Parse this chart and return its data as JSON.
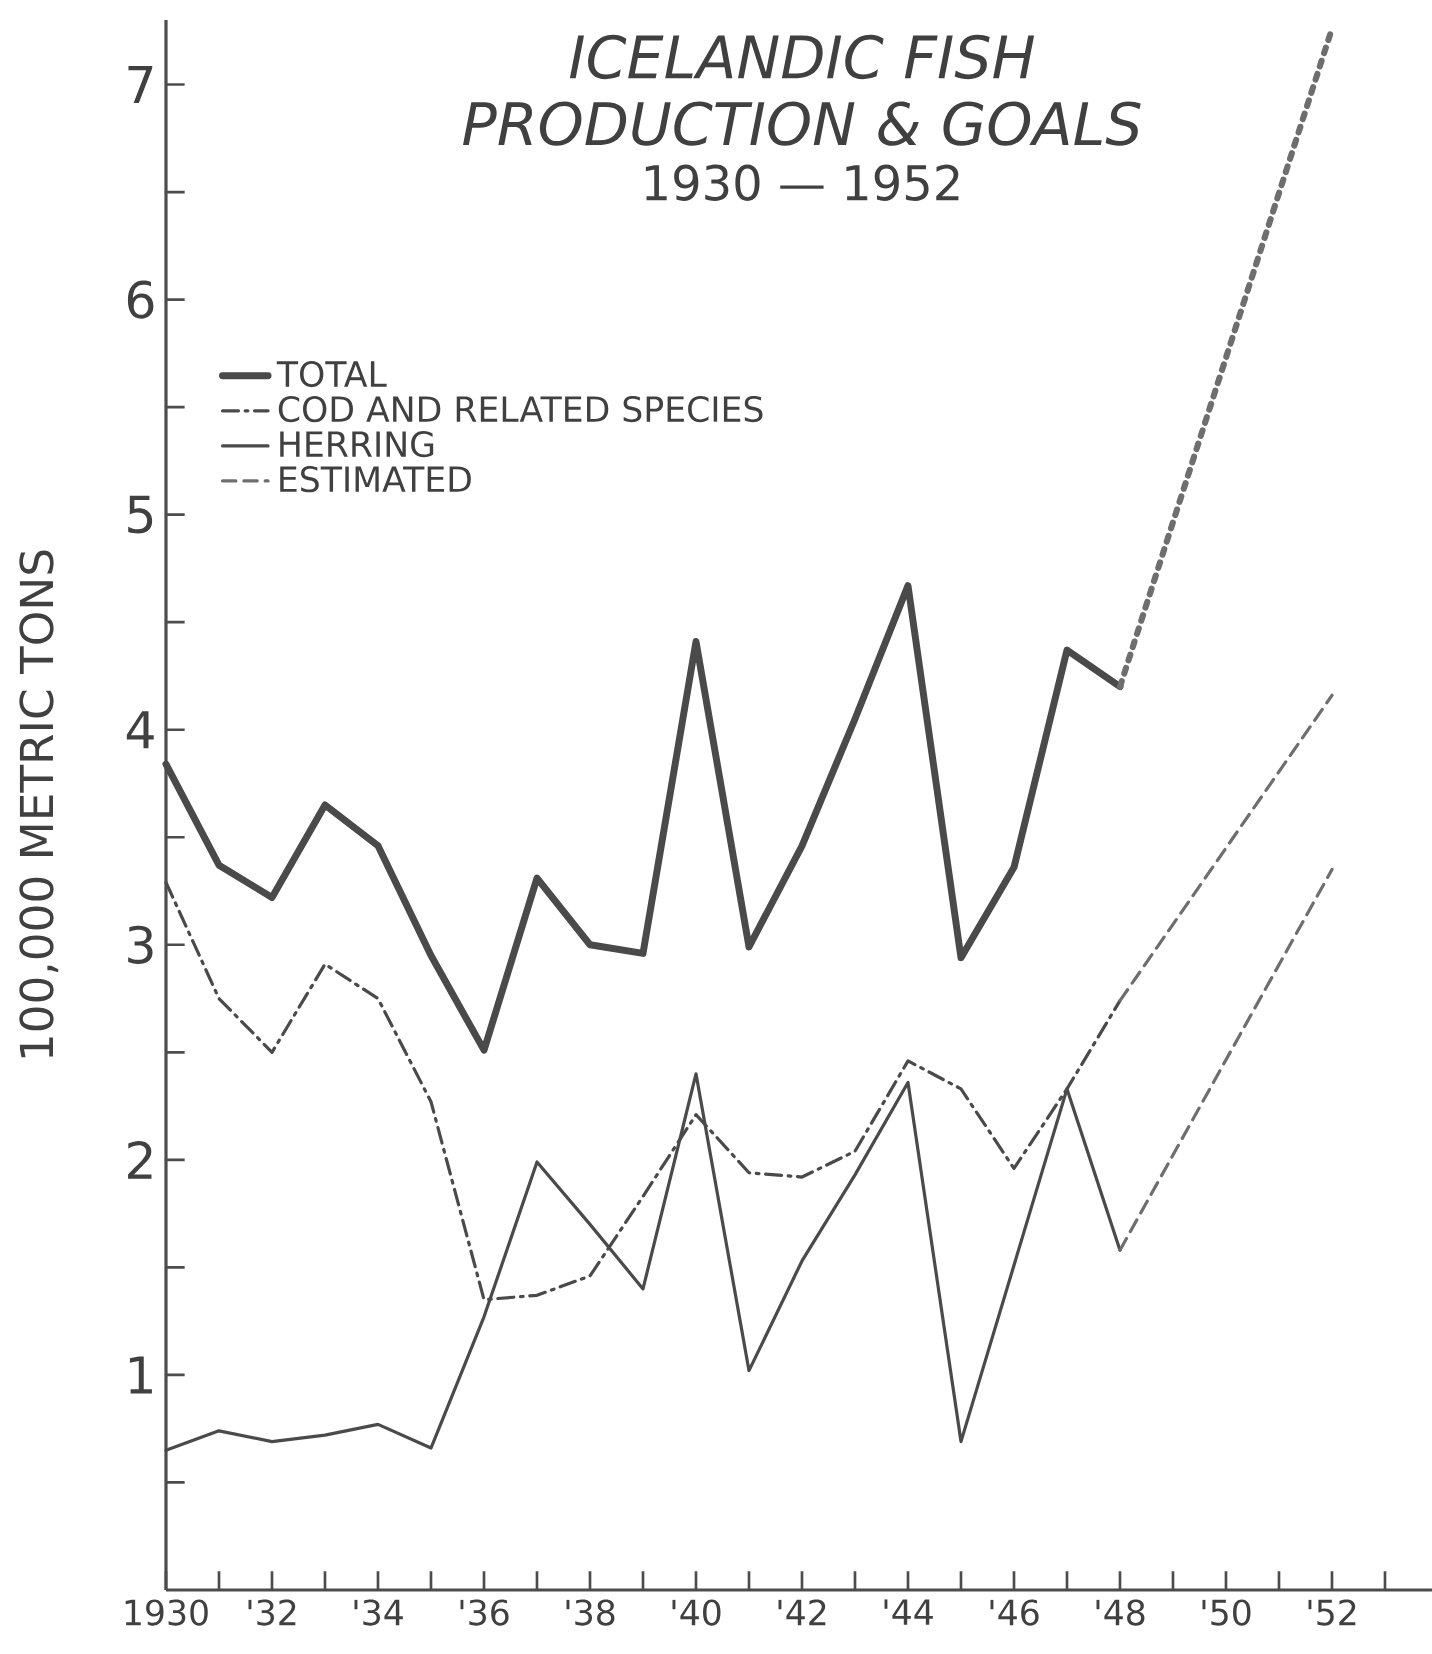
{
  "chart_data": {
    "type": "line",
    "title": "ICELANDIC FISH PRODUCTION & GOALS",
    "subtitle": "1930 — 1952",
    "ylabel": "100,000 METRIC TONS",
    "x": [
      1930,
      1931,
      1932,
      1933,
      1934,
      1935,
      1936,
      1937,
      1938,
      1939,
      1940,
      1941,
      1942,
      1943,
      1944,
      1945,
      1946,
      1947,
      1948,
      1952
    ],
    "series": [
      {
        "name": "TOTAL",
        "color": "#4a4a4a",
        "line_style": "solid",
        "values": [
          3.84,
          3.37,
          3.22,
          3.65,
          3.46,
          2.95,
          2.51,
          3.31,
          3.0,
          2.96,
          4.41,
          2.99,
          3.46,
          4.05,
          4.67,
          2.94,
          3.36,
          4.37,
          4.2,
          null
        ]
      },
      {
        "name": "COD AND RELATED SPECIES",
        "color": "#4a4a4a",
        "line_style": "dashdot",
        "values": [
          3.29,
          2.75,
          2.5,
          2.91,
          2.75,
          2.27,
          1.35,
          1.37,
          1.46,
          1.83,
          2.21,
          1.94,
          1.92,
          2.04,
          2.46,
          2.33,
          1.96,
          2.33,
          2.74,
          null
        ]
      },
      {
        "name": "HERRING",
        "color": "#4a4a4a",
        "line_style": "solid",
        "values": [
          0.65,
          0.74,
          0.69,
          0.72,
          0.77,
          0.66,
          1.27,
          1.99,
          1.7,
          1.4,
          2.4,
          1.02,
          1.53,
          1.93,
          2.36,
          0.69,
          1.51,
          2.33,
          1.58,
          null
        ]
      },
      {
        "name": "ESTIMATED",
        "color": "#6e6e6e",
        "line_style": "dashed",
        "values": [
          null,
          null,
          null,
          null,
          null,
          null,
          null,
          null,
          null,
          null,
          null,
          null,
          null,
          null,
          null,
          null,
          null,
          null,
          1.58,
          3.35
        ]
      },
      {
        "color": "#6e6e6e",
        "line_style": "dashed",
        "values": [
          null,
          null,
          null,
          null,
          null,
          null,
          null,
          null,
          null,
          null,
          null,
          null,
          null,
          null,
          null,
          null,
          null,
          null,
          2.74,
          4.16
        ]
      },
      {
        "color": "#6e6e6e",
        "line_style": "dotted",
        "values": [
          null,
          null,
          null,
          null,
          null,
          null,
          null,
          null,
          null,
          null,
          null,
          null,
          null,
          null,
          null,
          null,
          null,
          null,
          4.2,
          7.26
        ]
      }
    ],
    "xlim": [
      1930,
      1954
    ],
    "ylim": [
      0,
      7.3
    ],
    "xticks": [
      1930,
      {
        "value": 1931,
        "label": null
      },
      {
        "value": 1932,
        "label": "'32"
      },
      {
        "value": 1933,
        "label": null
      },
      {
        "value": 1934,
        "label": "'34"
      },
      {
        "value": 1935,
        "label": null
      },
      {
        "value": 1936,
        "label": "'36"
      },
      {
        "value": 1937,
        "label": null
      },
      {
        "value": 1938,
        "label": "'38"
      },
      {
        "value": 1939,
        "label": null
      },
      {
        "value": 1940,
        "label": "'40"
      },
      {
        "value": 1941,
        "label": null
      },
      {
        "value": 1942,
        "label": "'42"
      },
      {
        "value": 1943,
        "label": null
      },
      {
        "value": 1944,
        "label": "'44"
      },
      {
        "value": 1945,
        "label": null
      },
      {
        "value": 1946,
        "label": "'46"
      },
      {
        "value": 1947,
        "label": null
      },
      {
        "value": 1948,
        "label": "'48"
      },
      {
        "value": 1949,
        "label": null
      },
      {
        "value": 1950,
        "label": "'50"
      },
      {
        "value": 1951,
        "label": null
      },
      {
        "value": 1952,
        "label": "'52"
      },
      {
        "value": 1953,
        "label": null
      }
    ],
    "yticks": [
      {
        "value": 0.5,
        "label": null
      },
      1,
      {
        "value": 1.5,
        "label": null
      },
      2,
      {
        "value": 2.5,
        "label": null
      },
      3,
      {
        "value": 3.5,
        "label": null
      },
      4,
      {
        "value": 4.5,
        "label": null
      },
      5,
      {
        "value": 5.5,
        "label": null
      },
      6,
      {
        "value": 6.5,
        "label": null
      },
      7
    ],
    "grid": false,
    "legend": "top left",
    "marker": "none"
  }
}
